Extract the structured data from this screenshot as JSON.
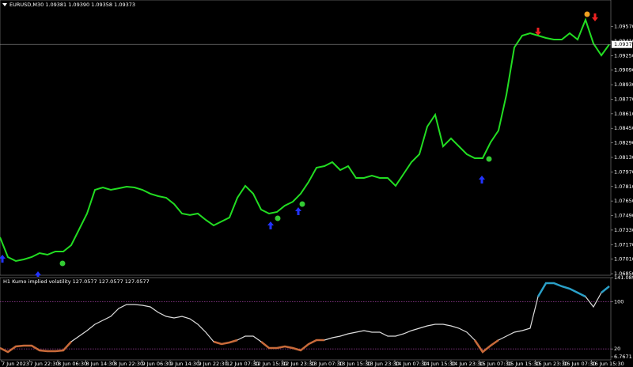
{
  "chart_data": [
    {
      "type": "line",
      "title": "EURUSD,M30 1.09381 1.09390 1.09358 1.09373",
      "color": "#22dd22",
      "last_price": 1.09373,
      "values": [
        1.07251,
        1.07033,
        1.0699,
        1.07007,
        1.07033,
        1.07077,
        1.07059,
        1.07094,
        1.07094,
        1.07164,
        1.07338,
        1.07512,
        1.07773,
        1.07799,
        1.07773,
        1.0779,
        1.07808,
        1.07799,
        1.07773,
        1.0773,
        1.07703,
        1.07686,
        1.07616,
        1.07512,
        1.07495,
        1.07512,
        1.07442,
        1.07381,
        1.07425,
        1.07468,
        1.07686,
        1.07817,
        1.0773,
        1.07555,
        1.07512,
        1.07529,
        1.07599,
        1.07642,
        1.0773,
        1.0786,
        1.08017,
        1.08034,
        1.08078,
        1.07991,
        1.08034,
        1.07904,
        1.07904,
        1.0793,
        1.07904,
        1.07904,
        1.07817,
        1.07947,
        1.08078,
        1.08165,
        1.08469,
        1.086,
        1.08252,
        1.08339,
        1.08252,
        1.08165,
        1.08121,
        1.08121,
        1.08295,
        1.08426,
        1.08818,
        1.0934,
        1.0947,
        1.09496,
        1.0947,
        1.09444,
        1.09427,
        1.09427,
        1.09496,
        1.09427,
        1.09644,
        1.09383,
        1.09253,
        1.09373
      ],
      "ylim": [
        1.06833,
        1.09862
      ],
      "yticks": [
        {
          "value": 1.0957,
          "label": "1.09570"
        },
        {
          "value": 1.0941,
          "label": "1.09410"
        },
        {
          "value": 1.0925,
          "label": "1.09250"
        },
        {
          "value": 1.0909,
          "label": "1.09090"
        },
        {
          "value": 1.0893,
          "label": "1.08930"
        },
        {
          "value": 1.0877,
          "label": "1.08770"
        },
        {
          "value": 1.0861,
          "label": "1.08610"
        },
        {
          "value": 1.0845,
          "label": "1.08450"
        },
        {
          "value": 1.0829,
          "label": "1.08290"
        },
        {
          "value": 1.0813,
          "label": "1.08130"
        },
        {
          "value": 1.0797,
          "label": "1.07970"
        },
        {
          "value": 1.0781,
          "label": "1.07810"
        },
        {
          "value": 1.0765,
          "label": "1.07650"
        },
        {
          "value": 1.0749,
          "label": "1.07490"
        },
        {
          "value": 1.0733,
          "label": "1.07330"
        },
        {
          "value": 1.0717,
          "label": "1.07170"
        },
        {
          "value": 1.0701,
          "label": "1.07010"
        },
        {
          "value": 1.0685,
          "label": "1.06850"
        }
      ]
    },
    {
      "type": "line",
      "title": "H1 Kumo implied volatility 127.0577 127.0577 127.0577",
      "color": "#dddddd",
      "low_color": "#c86a3a",
      "high_color": "#2aa0c8",
      "level_color": "#a040a0",
      "values": [
        21.54,
        14.83,
        24.23,
        25.57,
        25.57,
        17.51,
        16.17,
        16.17,
        17.51,
        32.29,
        41.69,
        51.09,
        61.84,
        68.55,
        75.27,
        88.7,
        95.42,
        95.42,
        94.07,
        91.39,
        81.99,
        75.27,
        72.58,
        75.27,
        71.24,
        61.84,
        48.41,
        32.29,
        28.26,
        30.94,
        34.97,
        41.69,
        41.69,
        32.29,
        21.54,
        21.54,
        24.23,
        21.54,
        17.51,
        28.26,
        34.97,
        34.97,
        39.0,
        41.69,
        45.72,
        48.41,
        51.09,
        48.41,
        48.41,
        41.69,
        41.69,
        45.72,
        51.09,
        55.12,
        59.15,
        61.84,
        61.84,
        59.15,
        55.12,
        48.41,
        34.97,
        14.83,
        25.57,
        34.97,
        41.69,
        48.41,
        51.09,
        55.12,
        108.85,
        131.69,
        131.69,
        126.31,
        122.28,
        115.57,
        108.85,
        91.39,
        115.57,
        126.31
      ],
      "ylim": [
        6.7671,
        141.0898
      ],
      "yticks": [
        141.0898,
        100,
        20,
        6.7671
      ],
      "levels": [
        100,
        20
      ],
      "x_labels": [
        "7 Jun 2023",
        "7 Jun 22:30",
        "8 Jun 06:30",
        "8 Jun 14:30",
        "8 Jun 22:30",
        "9 Jun 06:30",
        "9 Jun 14:30",
        "9 Jun 22:30",
        "12 Jun 07:30",
        "12 Jun 15:30",
        "12 Jun 23:30",
        "13 Jun 07:30",
        "13 Jun 15:30",
        "13 Jun 23:30",
        "14 Jun 07:30",
        "14 Jun 15:30",
        "14 Jun 23:30",
        "15 Jun 07:30",
        "15 Jun 15:30",
        "15 Jun 23:30",
        "16 Jun 07:30",
        "16 Jun 15:30"
      ]
    }
  ]
}
